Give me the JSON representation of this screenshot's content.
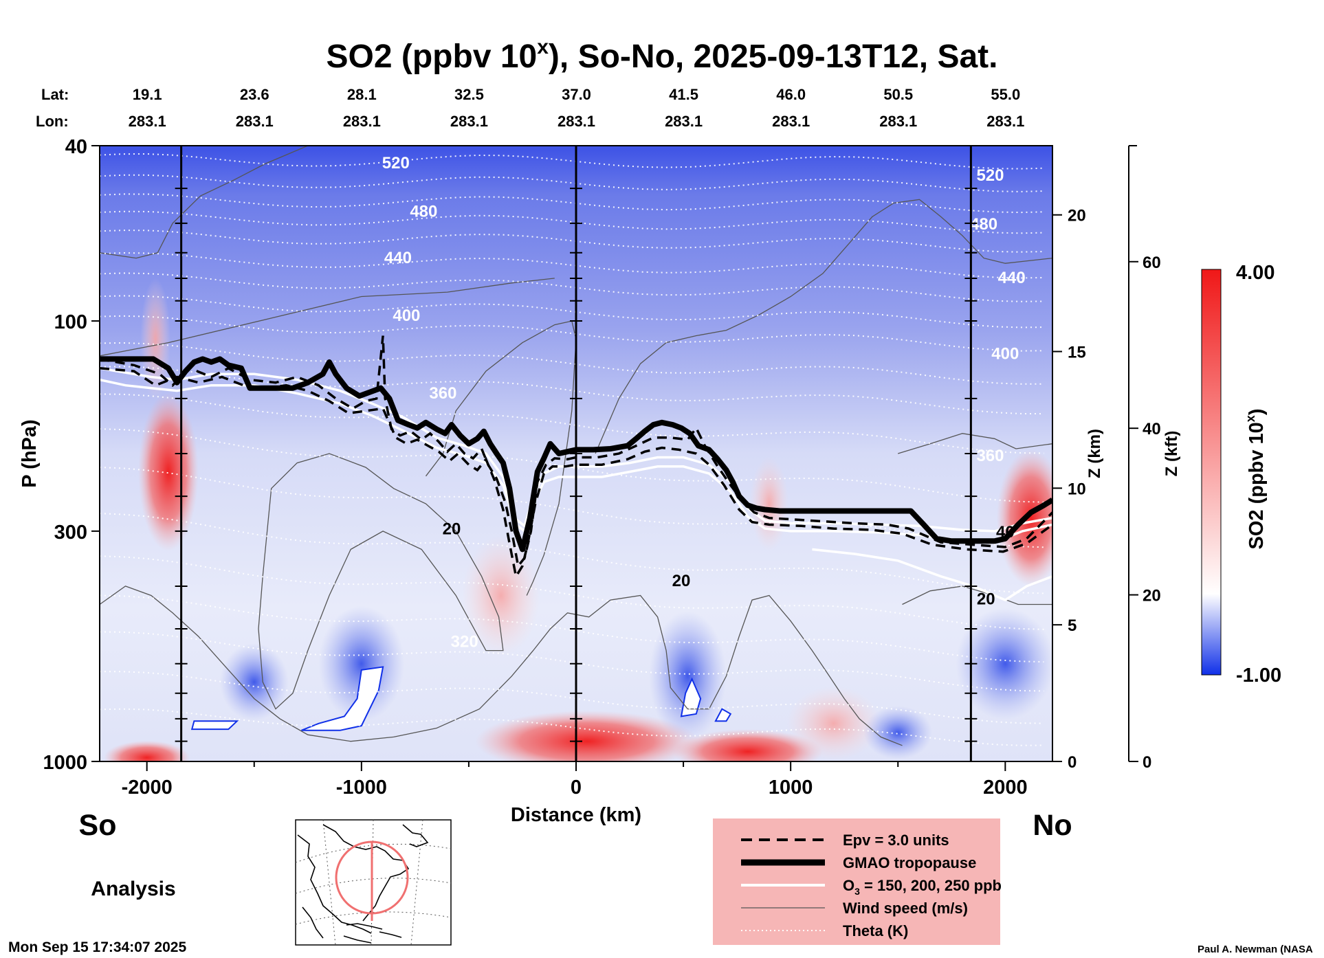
{
  "title": "SO2 (ppbv 10",
  "title_superscript": "x",
  "title_rest": "), So-No, 2025-09-13T12, Sat.",
  "lat_label": "Lat:",
  "lon_label": "Lon:",
  "lat_values": [
    "19.1",
    "23.6",
    "28.1",
    "32.5",
    "37.0",
    "41.5",
    "46.0",
    "50.5",
    "55.0"
  ],
  "lon_values": [
    "283.1",
    "283.1",
    "283.1",
    "283.1",
    "283.1",
    "283.1",
    "283.1",
    "283.1",
    "283.1"
  ],
  "left_end_label": "So",
  "right_end_label": "No",
  "analysis_label": "Analysis",
  "timestamp": "Mon Sep 15 17:34:07 2025",
  "credit": "Paul A. Newman (NASA",
  "colors": {
    "high": "#f01818",
    "mid": "#ffffff",
    "low": "#1030e8",
    "background_upper": "#6f7ee8",
    "background_lower": "#e6e9fa",
    "legend_box": "#f6b6b6",
    "map_circle": "#f07070"
  },
  "chart_data": {
    "type": "heatmap",
    "xlabel": "Distance (km)",
    "ylabel": "P (hPa)",
    "xlim": [
      -2220,
      2220
    ],
    "ylim": [
      1000,
      40
    ],
    "y_scale": "log",
    "x_ticks": [
      {
        "value": -2000,
        "label": "-2000"
      },
      {
        "value": -1000,
        "label": "-1000"
      },
      {
        "value": 0,
        "label": "0"
      },
      {
        "value": 1000,
        "label": "1000"
      },
      {
        "value": 2000,
        "label": "2000"
      }
    ],
    "p_ticks": [
      {
        "value": 40,
        "label": "40"
      },
      {
        "value": 100,
        "label": "100"
      },
      {
        "value": 300,
        "label": "300"
      },
      {
        "value": 1000,
        "label": "1000"
      }
    ],
    "z_km_label": "Z (km)",
    "z_km_ticks": [
      {
        "value": 0,
        "label": "0"
      },
      {
        "value": 5,
        "label": "5"
      },
      {
        "value": 10,
        "label": "10"
      },
      {
        "value": 15,
        "label": "15"
      },
      {
        "value": 20,
        "label": "20"
      }
    ],
    "z_kft_label": "Z (kft)",
    "z_kft_ticks": [
      {
        "value": 0,
        "label": "0"
      },
      {
        "value": 20,
        "label": "20"
      },
      {
        "value": 40,
        "label": "40"
      },
      {
        "value": 60,
        "label": "60"
      }
    ],
    "colorbar": {
      "label": "SO2 (ppbv 10",
      "label_superscript": "x",
      "label_close": ")",
      "max_label": "4.00",
      "min_label": "-1.00",
      "range": [
        -1.0,
        4.0
      ]
    },
    "theta_labels": [
      {
        "x": -840,
        "p": 45,
        "text": "520"
      },
      {
        "x": 1930,
        "p": 48,
        "text": "520"
      },
      {
        "x": -710,
        "p": 58,
        "text": "480"
      },
      {
        "x": 1900,
        "p": 62,
        "text": "480"
      },
      {
        "x": -830,
        "p": 74,
        "text": "440"
      },
      {
        "x": 2030,
        "p": 82,
        "text": "440"
      },
      {
        "x": -790,
        "p": 100,
        "text": "400"
      },
      {
        "x": 2000,
        "p": 122,
        "text": "400"
      },
      {
        "x": -620,
        "p": 150,
        "text": "360"
      },
      {
        "x": 1930,
        "p": 208,
        "text": "360"
      },
      {
        "x": -520,
        "p": 550,
        "text": "320"
      }
    ],
    "wind_labels": [
      {
        "x": -580,
        "p": 305,
        "text": "20"
      },
      {
        "x": 490,
        "p": 400,
        "text": "20"
      },
      {
        "x": 2000,
        "p": 310,
        "text": "40"
      },
      {
        "x": 1910,
        "p": 440,
        "text": "20"
      }
    ],
    "tropopause_gmao": [
      [
        -2220,
        122
      ],
      [
        -2120,
        122
      ],
      [
        -1970,
        122
      ],
      [
        -1900,
        128
      ],
      [
        -1860,
        138
      ],
      [
        -1820,
        130
      ],
      [
        -1780,
        124
      ],
      [
        -1740,
        122
      ],
      [
        -1700,
        124
      ],
      [
        -1660,
        122
      ],
      [
        -1620,
        126
      ],
      [
        -1560,
        128
      ],
      [
        -1520,
        142
      ],
      [
        -1460,
        142
      ],
      [
        -1400,
        142
      ],
      [
        -1320,
        142
      ],
      [
        -1250,
        138
      ],
      [
        -1180,
        132
      ],
      [
        -1150,
        124
      ],
      [
        -1120,
        132
      ],
      [
        -1070,
        142
      ],
      [
        -1010,
        148
      ],
      [
        -960,
        145
      ],
      [
        -910,
        142
      ],
      [
        -870,
        150
      ],
      [
        -830,
        168
      ],
      [
        -780,
        172
      ],
      [
        -740,
        175
      ],
      [
        -700,
        170
      ],
      [
        -650,
        176
      ],
      [
        -610,
        180
      ],
      [
        -580,
        172
      ],
      [
        -540,
        182
      ],
      [
        -500,
        190
      ],
      [
        -460,
        185
      ],
      [
        -430,
        178
      ],
      [
        -400,
        190
      ],
      [
        -370,
        200
      ],
      [
        -340,
        210
      ],
      [
        -310,
        240
      ],
      [
        -280,
        300
      ],
      [
        -250,
        330
      ],
      [
        -215,
        280
      ],
      [
        -180,
        220
      ],
      [
        -150,
        205
      ],
      [
        -120,
        190
      ],
      [
        -80,
        200
      ],
      [
        -40,
        198
      ],
      [
        0,
        196
      ],
      [
        80,
        196
      ],
      [
        160,
        195
      ],
      [
        240,
        192
      ],
      [
        280,
        185
      ],
      [
        320,
        178
      ],
      [
        360,
        172
      ],
      [
        400,
        170
      ],
      [
        450,
        172
      ],
      [
        490,
        175
      ],
      [
        530,
        180
      ],
      [
        570,
        192
      ],
      [
        620,
        196
      ],
      [
        660,
        206
      ],
      [
        700,
        218
      ],
      [
        730,
        232
      ],
      [
        760,
        250
      ],
      [
        800,
        262
      ],
      [
        840,
        266
      ],
      [
        880,
        268
      ],
      [
        950,
        270
      ],
      [
        1100,
        270
      ],
      [
        1300,
        270
      ],
      [
        1450,
        270
      ],
      [
        1560,
        270
      ],
      [
        1620,
        290
      ],
      [
        1680,
        312
      ],
      [
        1750,
        316
      ],
      [
        1860,
        316
      ],
      [
        1950,
        316
      ],
      [
        2000,
        312
      ],
      [
        2060,
        290
      ],
      [
        2120,
        272
      ],
      [
        2180,
        262
      ],
      [
        2220,
        255
      ]
    ],
    "epv_3_units": [
      [
        -2220,
        122
      ],
      [
        -2060,
        126
      ],
      [
        -1940,
        132
      ],
      [
        -1880,
        140
      ],
      [
        -1800,
        128
      ],
      [
        -1700,
        134
      ],
      [
        -1620,
        128
      ],
      [
        -1520,
        136
      ],
      [
        -1400,
        138
      ],
      [
        -1300,
        134
      ],
      [
        -1200,
        140
      ],
      [
        -1120,
        150
      ],
      [
        -1040,
        158
      ],
      [
        -980,
        152
      ],
      [
        -930,
        150
      ],
      [
        -900,
        108
      ],
      [
        -890,
        150
      ],
      [
        -860,
        176
      ],
      [
        -820,
        182
      ],
      [
        -770,
        178
      ],
      [
        -720,
        186
      ],
      [
        -680,
        180
      ],
      [
        -640,
        188
      ],
      [
        -600,
        198
      ],
      [
        -560,
        190
      ],
      [
        -520,
        200
      ],
      [
        -480,
        205
      ],
      [
        -440,
        195
      ],
      [
        -410,
        212
      ],
      [
        -370,
        228
      ],
      [
        -330,
        258
      ],
      [
        -300,
        300
      ],
      [
        -270,
        360
      ],
      [
        -240,
        345
      ],
      [
        -210,
        300
      ],
      [
        -180,
        232
      ],
      [
        -140,
        212
      ],
      [
        -100,
        205
      ],
      [
        -40,
        206
      ],
      [
        0,
        204
      ],
      [
        100,
        204
      ],
      [
        200,
        200
      ],
      [
        280,
        192
      ],
      [
        360,
        184
      ],
      [
        440,
        184
      ],
      [
        520,
        186
      ],
      [
        560,
        175
      ],
      [
        600,
        192
      ],
      [
        660,
        214
      ],
      [
        720,
        236
      ],
      [
        780,
        258
      ],
      [
        830,
        272
      ],
      [
        900,
        280
      ],
      [
        1000,
        282
      ],
      [
        1150,
        285
      ],
      [
        1300,
        288
      ],
      [
        1450,
        290
      ],
      [
        1550,
        296
      ],
      [
        1700,
        318
      ],
      [
        1850,
        322
      ],
      [
        2000,
        326
      ],
      [
        2100,
        312
      ],
      [
        2220,
        272
      ]
    ],
    "epv_3_units_2": [
      [
        -2220,
        128
      ],
      [
        -2060,
        130
      ],
      [
        -1960,
        140
      ],
      [
        -1860,
        134
      ],
      [
        -1760,
        138
      ],
      [
        -1650,
        134
      ],
      [
        -1550,
        140
      ],
      [
        -1450,
        142
      ],
      [
        -1350,
        140
      ],
      [
        -1250,
        144
      ],
      [
        -1150,
        152
      ],
      [
        -1060,
        162
      ],
      [
        -980,
        160
      ],
      [
        -900,
        158
      ],
      [
        -840,
        184
      ],
      [
        -790,
        190
      ],
      [
        -740,
        186
      ],
      [
        -690,
        192
      ],
      [
        -640,
        198
      ],
      [
        -590,
        208
      ],
      [
        -550,
        200
      ],
      [
        -500,
        212
      ],
      [
        -460,
        218
      ],
      [
        -420,
        206
      ],
      [
        -380,
        230
      ],
      [
        -340,
        268
      ],
      [
        -310,
        320
      ],
      [
        -280,
        380
      ],
      [
        -250,
        360
      ],
      [
        -225,
        320
      ],
      [
        -190,
        260
      ],
      [
        -150,
        222
      ],
      [
        -110,
        214
      ],
      [
        -50,
        214
      ],
      [
        0,
        212
      ],
      [
        120,
        212
      ],
      [
        240,
        206
      ],
      [
        320,
        198
      ],
      [
        400,
        194
      ],
      [
        480,
        196
      ],
      [
        560,
        200
      ],
      [
        620,
        212
      ],
      [
        690,
        236
      ],
      [
        760,
        268
      ],
      [
        820,
        286
      ],
      [
        900,
        290
      ],
      [
        1050,
        292
      ],
      [
        1200,
        296
      ],
      [
        1380,
        298
      ],
      [
        1520,
        304
      ],
      [
        1660,
        322
      ],
      [
        1820,
        330
      ],
      [
        1990,
        334
      ],
      [
        2100,
        320
      ],
      [
        2220,
        290
      ]
    ],
    "ozone_150": [
      [
        -2220,
        136
      ],
      [
        -2100,
        140
      ],
      [
        -1980,
        142
      ],
      [
        -1860,
        144
      ],
      [
        -1700,
        140
      ],
      [
        -1500,
        140
      ],
      [
        -1300,
        146
      ],
      [
        -1100,
        154
      ],
      [
        -950,
        164
      ],
      [
        -800,
        178
      ],
      [
        -650,
        194
      ],
      [
        -520,
        202
      ],
      [
        -420,
        210
      ],
      [
        -340,
        236
      ],
      [
        -280,
        290
      ],
      [
        -240,
        300
      ],
      [
        -200,
        260
      ],
      [
        -150,
        232
      ],
      [
        -80,
        226
      ],
      [
        0,
        226
      ],
      [
        120,
        226
      ],
      [
        250,
        220
      ],
      [
        380,
        214
      ],
      [
        500,
        214
      ],
      [
        620,
        222
      ],
      [
        720,
        244
      ],
      [
        800,
        278
      ],
      [
        880,
        296
      ],
      [
        1000,
        300
      ],
      [
        1200,
        300
      ],
      [
        1400,
        302
      ],
      [
        1600,
        306
      ],
      [
        1800,
        316
      ],
      [
        1950,
        318
      ],
      [
        2080,
        300
      ],
      [
        2220,
        290
      ]
    ],
    "ozone_200": [
      [
        -2220,
        128
      ],
      [
        -2100,
        131
      ],
      [
        -1980,
        134
      ],
      [
        -1860,
        136
      ],
      [
        -1700,
        132
      ],
      [
        -1500,
        132
      ],
      [
        -1300,
        136
      ],
      [
        -1100,
        144
      ],
      [
        -950,
        154
      ],
      [
        -800,
        166
      ],
      [
        -650,
        184
      ],
      [
        -520,
        192
      ],
      [
        -420,
        200
      ],
      [
        -340,
        226
      ],
      [
        -280,
        282
      ],
      [
        -240,
        292
      ],
      [
        -200,
        250
      ],
      [
        -150,
        222
      ],
      [
        -80,
        214
      ],
      [
        0,
        214
      ],
      [
        120,
        214
      ],
      [
        250,
        210
      ],
      [
        380,
        204
      ],
      [
        500,
        204
      ],
      [
        620,
        212
      ],
      [
        720,
        232
      ],
      [
        800,
        266
      ],
      [
        880,
        284
      ],
      [
        1000,
        288
      ],
      [
        1200,
        288
      ],
      [
        1400,
        290
      ],
      [
        1600,
        292
      ],
      [
        1800,
        298
      ],
      [
        1950,
        300
      ],
      [
        2080,
        288
      ],
      [
        2220,
        280
      ]
    ],
    "ozone_250": [
      [
        1100,
        330
      ],
      [
        1300,
        338
      ],
      [
        1500,
        350
      ],
      [
        1700,
        380
      ],
      [
        1850,
        400
      ],
      [
        2000,
        430
      ],
      [
        2100,
        400
      ],
      [
        2220,
        380
      ]
    ]
  },
  "legend": {
    "epv": "Epv = 3.0 units",
    "tropopause": "GMAO tropopause",
    "ozone_prefix": "O",
    "ozone_sub": "3",
    "ozone_suffix": " = 150, 200, 250 ppb",
    "wind": "Wind speed (m/s)",
    "theta": "Theta (K)"
  }
}
